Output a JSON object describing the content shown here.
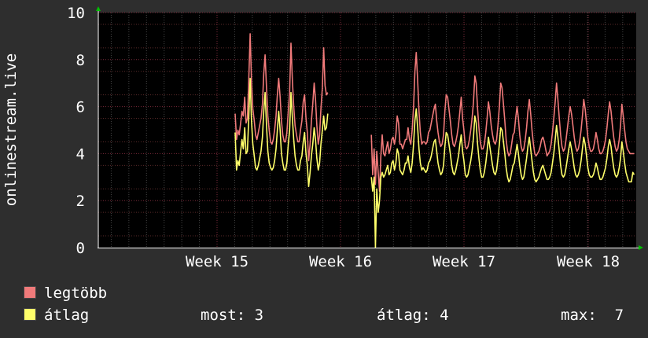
{
  "chart_data": {
    "type": "line",
    "ylabel": "onlinestream.live",
    "ylim": [
      0,
      10
    ],
    "yticks": [
      "0",
      "2",
      "4",
      "6",
      "8",
      "10"
    ],
    "xticks": [
      "Week 15",
      "Week 16",
      "Week 17",
      "Week 18"
    ],
    "grid": true,
    "background": "#000000",
    "series": [
      {
        "name": "legtöbb",
        "color": "#f07a7a",
        "values": [
          null,
          null,
          null,
          null,
          null,
          null,
          null,
          null,
          null,
          null,
          null,
          null,
          null,
          null,
          null,
          null,
          null,
          null,
          null,
          null,
          null,
          null,
          null,
          null,
          null,
          null,
          null,
          null,
          null,
          null,
          null,
          null,
          null,
          null,
          null,
          null,
          null,
          null,
          null,
          null,
          null,
          null,
          null,
          null,
          null,
          null,
          null,
          null,
          null,
          null,
          null,
          null,
          null,
          null,
          null,
          null,
          null,
          null,
          null,
          null,
          null,
          null,
          null,
          null,
          null,
          null,
          null,
          null,
          null,
          null,
          null,
          null,
          null,
          null,
          null,
          null,
          null,
          null,
          null,
          null,
          null,
          null,
          null,
          null,
          null,
          null,
          null,
          null,
          null,
          null,
          null,
          null,
          null,
          null,
          null,
          null,
          null,
          null,
          null,
          null,
          5.7,
          4.6,
          5.0,
          4.8,
          5.3,
          5.8,
          5.6,
          6.4,
          5.3,
          5.5,
          7.1,
          9.1,
          7.1,
          5.9,
          5.4,
          4.8,
          4.6,
          4.9,
          5.2,
          5.5,
          6.1,
          7.4,
          8.2,
          6.8,
          5.6,
          5.0,
          4.5,
          4.4,
          4.6,
          5.0,
          5.6,
          6.5,
          7.2,
          6.4,
          5.4,
          4.8,
          4.5,
          4.5,
          4.9,
          5.8,
          6.6,
          8.7,
          7.1,
          6.0,
          5.2,
          4.8,
          4.5,
          4.5,
          5.0,
          5.4,
          6.2,
          6.5,
          5.5,
          4.9,
          3.7,
          4.4,
          5.4,
          6.1,
          7.0,
          6.3,
          5.2,
          4.4,
          4.8,
          5.9,
          6.8,
          8.5,
          6.9,
          6.5,
          6.6,
          null,
          null,
          null,
          null,
          null,
          null,
          null,
          null,
          null,
          null,
          null,
          null,
          null,
          null,
          null,
          null,
          null,
          null,
          null,
          null,
          null,
          null,
          null,
          null,
          null,
          null,
          null,
          null,
          null,
          null,
          null,
          4.8,
          3.1,
          4.2,
          2.7,
          4.1,
          3.2,
          2.4,
          3.9,
          4.8,
          4.0,
          3.9,
          4.2,
          4.5,
          4.0,
          4.2,
          4.6,
          4.7,
          4.4,
          4.8,
          5.6,
          5.3,
          4.4,
          4.4,
          4.2,
          4.4,
          4.6,
          4.6,
          5.1,
          4.6,
          4.4,
          5.0,
          6.0,
          7.5,
          8.3,
          7.1,
          5.8,
          4.9,
          4.4,
          4.5,
          4.5,
          4.4,
          4.5,
          4.9,
          5.0,
          5.3,
          5.6,
          5.9,
          6.1,
          5.4,
          4.9,
          4.5,
          4.3,
          4.4,
          4.8,
          5.8,
          6.5,
          6.4,
          5.9,
          5.4,
          4.8,
          4.4,
          4.3,
          4.5,
          4.8,
          5.2,
          5.8,
          6.4,
          5.5,
          5.0,
          4.3,
          4.2,
          4.3,
          4.6,
          5.0,
          5.5,
          6.2,
          7.3,
          7.0,
          5.9,
          5.1,
          4.5,
          4.2,
          4.2,
          4.4,
          4.9,
          5.5,
          6.2,
          5.8,
          5.2,
          4.8,
          4.5,
          4.4,
          4.6,
          5.2,
          6.0,
          7.0,
          6.8,
          6.1,
          5.4,
          4.6,
          4.1,
          3.9,
          4.0,
          4.4,
          4.8,
          4.9,
          5.5,
          6.0,
          5.5,
          4.8,
          4.3,
          4.1,
          4.2,
          4.6,
          5.1,
          5.8,
          6.3,
          5.7,
          5.0,
          4.4,
          4.0,
          3.9,
          4.0,
          4.1,
          4.3,
          4.6,
          4.7,
          4.5,
          4.2,
          3.9,
          4.0,
          4.1,
          4.4,
          4.9,
          5.5,
          6.2,
          7.0,
          6.3,
          5.5,
          4.8,
          4.3,
          4.1,
          4.2,
          4.6,
          5.1,
          5.6,
          6.0,
          5.7,
          5.2,
          4.7,
          4.3,
          4.1,
          4.2,
          4.5,
          5.0,
          5.6,
          6.3,
          5.9,
          5.3,
          4.7,
          4.3,
          4.1,
          4.1,
          4.2,
          4.5,
          4.9,
          4.6,
          4.2,
          4.0,
          4.0,
          4.1,
          4.3,
          4.6,
          5.1,
          5.7,
          6.2,
          5.8,
          5.2,
          4.7,
          4.3,
          4.1,
          4.2,
          4.6,
          5.2,
          6.1,
          5.6,
          5.0,
          4.5,
          4.2,
          4.1,
          4.0,
          4.0,
          4.0,
          4.0,
          null
        ]
      },
      {
        "name": "átlag",
        "color": "#ffff6a",
        "values": [
          null,
          null,
          null,
          null,
          null,
          null,
          null,
          null,
          null,
          null,
          null,
          null,
          null,
          null,
          null,
          null,
          null,
          null,
          null,
          null,
          null,
          null,
          null,
          null,
          null,
          null,
          null,
          null,
          null,
          null,
          null,
          null,
          null,
          null,
          null,
          null,
          null,
          null,
          null,
          null,
          null,
          null,
          null,
          null,
          null,
          null,
          null,
          null,
          null,
          null,
          null,
          null,
          null,
          null,
          null,
          null,
          null,
          null,
          null,
          null,
          null,
          null,
          null,
          null,
          null,
          null,
          null,
          null,
          null,
          null,
          null,
          null,
          null,
          null,
          null,
          null,
          null,
          null,
          null,
          null,
          null,
          null,
          null,
          null,
          null,
          null,
          null,
          null,
          null,
          null,
          null,
          null,
          null,
          null,
          null,
          null,
          null,
          null,
          null,
          null,
          4.9,
          3.3,
          3.7,
          3.5,
          4.1,
          4.6,
          4.2,
          5.1,
          4.0,
          4.1,
          5.5,
          7.2,
          5.4,
          4.4,
          3.9,
          3.4,
          3.3,
          3.5,
          3.8,
          4.1,
          4.7,
          5.8,
          6.6,
          5.2,
          4.1,
          3.6,
          3.4,
          3.3,
          3.4,
          3.7,
          4.2,
          5.0,
          5.8,
          5.0,
          4.0,
          3.6,
          3.3,
          3.3,
          3.6,
          4.4,
          5.0,
          6.6,
          5.5,
          4.6,
          3.9,
          3.5,
          3.3,
          3.3,
          3.7,
          3.9,
          4.5,
          4.9,
          4.0,
          3.5,
          2.6,
          3.2,
          3.9,
          4.4,
          5.1,
          4.6,
          3.8,
          3.3,
          3.6,
          4.4,
          5.0,
          5.6,
          5.0,
          5.1,
          5.7,
          null,
          null,
          null,
          null,
          null,
          null,
          null,
          null,
          null,
          null,
          null,
          null,
          null,
          null,
          null,
          null,
          null,
          null,
          null,
          null,
          null,
          null,
          null,
          null,
          null,
          null,
          null,
          null,
          null,
          null,
          null,
          3.0,
          2.4,
          3.0,
          0.0,
          2.5,
          1.5,
          2.0,
          3.0,
          3.2,
          3.0,
          3.1,
          3.3,
          3.5,
          3.1,
          3.2,
          3.6,
          3.7,
          3.3,
          3.6,
          4.2,
          4.0,
          3.3,
          3.2,
          3.1,
          3.3,
          3.6,
          3.6,
          3.9,
          3.4,
          3.2,
          3.6,
          4.4,
          5.4,
          5.9,
          5.1,
          4.2,
          3.6,
          3.3,
          3.4,
          3.3,
          3.2,
          3.3,
          3.6,
          3.7,
          3.9,
          4.2,
          4.5,
          4.6,
          4.1,
          3.6,
          3.3,
          3.1,
          3.2,
          3.5,
          4.3,
          4.9,
          4.8,
          4.4,
          4.0,
          3.5,
          3.2,
          3.1,
          3.3,
          3.6,
          3.9,
          4.4,
          4.8,
          4.1,
          3.7,
          3.1,
          3.0,
          3.1,
          3.4,
          3.7,
          4.1,
          4.7,
          5.6,
          5.3,
          4.4,
          3.8,
          3.3,
          3.0,
          3.0,
          3.2,
          3.6,
          4.1,
          4.7,
          4.3,
          3.9,
          3.5,
          3.2,
          3.1,
          3.3,
          3.8,
          4.4,
          5.1,
          5.0,
          4.5,
          4.0,
          3.4,
          3.0,
          2.8,
          2.9,
          3.2,
          3.5,
          3.6,
          4.0,
          4.4,
          4.0,
          3.5,
          3.1,
          2.9,
          3.0,
          3.4,
          3.8,
          4.3,
          4.7,
          4.2,
          3.7,
          3.2,
          2.9,
          2.8,
          2.9,
          3.0,
          3.2,
          3.4,
          3.5,
          3.3,
          3.1,
          2.9,
          2.9,
          3.0,
          3.2,
          3.6,
          4.0,
          4.6,
          5.2,
          4.7,
          4.1,
          3.5,
          3.1,
          3.0,
          3.1,
          3.4,
          3.8,
          4.2,
          4.5,
          4.2,
          3.8,
          3.4,
          3.1,
          3.0,
          3.1,
          3.3,
          3.7,
          4.2,
          4.7,
          4.4,
          3.9,
          3.4,
          3.1,
          3.0,
          3.0,
          3.1,
          3.3,
          3.6,
          3.4,
          3.1,
          2.9,
          2.9,
          3.0,
          3.2,
          3.4,
          3.8,
          4.3,
          4.6,
          4.3,
          3.8,
          3.4,
          3.1,
          3.0,
          3.1,
          3.4,
          3.8,
          4.5,
          4.1,
          3.6,
          3.2,
          3.0,
          2.8,
          2.8,
          2.8,
          3.2,
          3.1,
          null
        ]
      }
    ]
  },
  "legend": {
    "items": [
      {
        "label": "legtöbb",
        "color": "#f07a7a"
      },
      {
        "label": "átlag",
        "color": "#ffff6a"
      }
    ]
  },
  "stats": {
    "now": "most: 3",
    "avg": "átlag: 4",
    "max": "max:  7"
  }
}
